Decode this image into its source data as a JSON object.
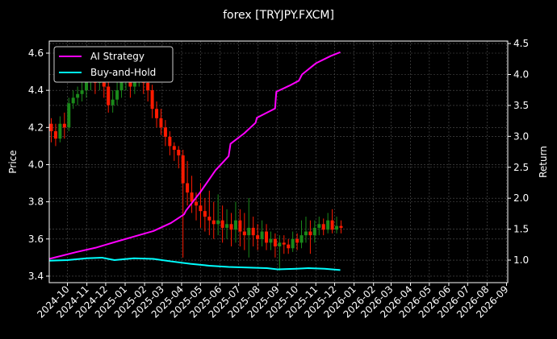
{
  "chart_data": {
    "type": "candlestick+line",
    "title": "forex [TRYJPY.FXCM]",
    "left_axis": {
      "label": "Price",
      "ylim": [
        3.365,
        4.665
      ],
      "ticks": [
        "3.4",
        "3.6",
        "3.8",
        "4.0",
        "4.2",
        "4.4",
        "4.6"
      ]
    },
    "right_axis": {
      "label": "Return",
      "ylim": [
        0.636,
        4.54
      ],
      "ticks": [
        "1.0",
        "1.5",
        "2.0",
        "2.5",
        "3.0",
        "3.5",
        "4.0",
        "4.5"
      ]
    },
    "x_axis": {
      "xlim": [
        "2024-09-02",
        "2026-09-03"
      ],
      "ticks": [
        "2024-10",
        "2024-11",
        "2024-12",
        "2025-01",
        "2025-02",
        "2025-03",
        "2025-04",
        "2025-05",
        "2025-06",
        "2025-07",
        "2025-08",
        "2025-09",
        "2025-10",
        "2025-11",
        "2025-12",
        "2026-01",
        "2026-02",
        "2026-03",
        "2026-04",
        "2026-05",
        "2026-06",
        "2026-07",
        "2026-08",
        "2026-09"
      ]
    },
    "grid": true,
    "legend": {
      "placement": "top-left",
      "entries": [
        "AI Strategy",
        "Buy-and-Hold"
      ]
    },
    "colors": {
      "up": "#1a8a1a",
      "down": "#ff1a00",
      "ai": "#ff00ff",
      "bh": "#00ffff",
      "background": "#000000"
    },
    "candles": {
      "dates": [
        "2024-09-02",
        "2024-09-09",
        "2024-09-16",
        "2024-09-23",
        "2024-09-30",
        "2024-10-07",
        "2024-10-14",
        "2024-10-21",
        "2024-10-28",
        "2024-11-04",
        "2024-11-11",
        "2024-11-18",
        "2024-11-25",
        "2024-12-02",
        "2024-12-09",
        "2024-12-16",
        "2024-12-23",
        "2024-12-30",
        "2025-01-06",
        "2025-01-13",
        "2025-01-20",
        "2025-01-27",
        "2025-02-03",
        "2025-02-10",
        "2025-02-17",
        "2025-02-24",
        "2025-03-03",
        "2025-03-10",
        "2025-03-17",
        "2025-03-24",
        "2025-03-31",
        "2025-04-07",
        "2025-04-14",
        "2025-04-21",
        "2025-04-28",
        "2025-05-05",
        "2025-05-12",
        "2025-05-19",
        "2025-05-26",
        "2025-06-02",
        "2025-06-09",
        "2025-06-16",
        "2025-06-23",
        "2025-06-30",
        "2025-07-07",
        "2025-07-14",
        "2025-07-21",
        "2025-07-28",
        "2025-08-04",
        "2025-08-11",
        "2025-08-18",
        "2025-08-25",
        "2025-09-01",
        "2025-09-08",
        "2025-09-15",
        "2025-09-22",
        "2025-09-29",
        "2025-10-06",
        "2025-10-13",
        "2025-10-20",
        "2025-10-27",
        "2025-11-03",
        "2025-11-10",
        "2025-11-17",
        "2025-11-24",
        "2025-12-01",
        "2025-12-08"
      ],
      "ohlc": [
        [
          4.22,
          4.25,
          4.12,
          4.18
        ],
        [
          4.18,
          4.22,
          4.1,
          4.14
        ],
        [
          4.14,
          4.26,
          4.12,
          4.22
        ],
        [
          4.22,
          4.28,
          4.14,
          4.2
        ],
        [
          4.2,
          4.36,
          4.18,
          4.33
        ],
        [
          4.33,
          4.4,
          4.3,
          4.36
        ],
        [
          4.36,
          4.42,
          4.32,
          4.38
        ],
        [
          4.38,
          4.48,
          4.34,
          4.4
        ],
        [
          4.4,
          4.52,
          4.36,
          4.45
        ],
        [
          4.45,
          4.53,
          4.4,
          4.48
        ],
        [
          4.48,
          4.52,
          4.38,
          4.44
        ],
        [
          4.44,
          4.55,
          4.4,
          4.5
        ],
        [
          4.5,
          4.53,
          4.36,
          4.42
        ],
        [
          4.42,
          4.45,
          4.28,
          4.32
        ],
        [
          4.32,
          4.4,
          4.28,
          4.35
        ],
        [
          4.35,
          4.46,
          4.32,
          4.4
        ],
        [
          4.4,
          4.52,
          4.36,
          4.45
        ],
        [
          4.45,
          4.54,
          4.4,
          4.48
        ],
        [
          4.48,
          4.52,
          4.36,
          4.42
        ],
        [
          4.42,
          4.52,
          4.38,
          4.46
        ],
        [
          4.46,
          4.55,
          4.42,
          4.5
        ],
        [
          4.5,
          4.53,
          4.38,
          4.44
        ],
        [
          4.44,
          4.47,
          4.34,
          4.4
        ],
        [
          4.4,
          4.43,
          4.25,
          4.3
        ],
        [
          4.3,
          4.34,
          4.2,
          4.25
        ],
        [
          4.25,
          4.3,
          4.16,
          4.2
        ],
        [
          4.2,
          4.24,
          4.1,
          4.15
        ],
        [
          4.15,
          4.18,
          4.05,
          4.1
        ],
        [
          4.1,
          4.12,
          4.02,
          4.08
        ],
        [
          4.08,
          4.1,
          3.98,
          4.05
        ],
        [
          4.05,
          4.08,
          3.5,
          3.9
        ],
        [
          3.9,
          4.02,
          3.78,
          3.85
        ],
        [
          3.85,
          3.94,
          3.74,
          3.8
        ],
        [
          3.8,
          3.85,
          3.7,
          3.78
        ],
        [
          3.78,
          3.9,
          3.66,
          3.75
        ],
        [
          3.75,
          3.82,
          3.64,
          3.72
        ],
        [
          3.72,
          3.86,
          3.62,
          3.7
        ],
        [
          3.7,
          3.8,
          3.6,
          3.68
        ],
        [
          3.68,
          3.84,
          3.62,
          3.7
        ],
        [
          3.7,
          3.78,
          3.58,
          3.66
        ],
        [
          3.66,
          3.76,
          3.6,
          3.68
        ],
        [
          3.68,
          3.74,
          3.56,
          3.65
        ],
        [
          3.65,
          3.8,
          3.58,
          3.7
        ],
        [
          3.7,
          3.76,
          3.56,
          3.64
        ],
        [
          3.64,
          3.74,
          3.54,
          3.62
        ],
        [
          3.62,
          3.82,
          3.5,
          3.66
        ],
        [
          3.66,
          3.72,
          3.56,
          3.62
        ],
        [
          3.62,
          3.68,
          3.54,
          3.6
        ],
        [
          3.6,
          3.7,
          3.56,
          3.64
        ],
        [
          3.64,
          3.68,
          3.54,
          3.58
        ],
        [
          3.58,
          3.64,
          3.54,
          3.6
        ],
        [
          3.6,
          3.63,
          3.5,
          3.56
        ],
        [
          3.56,
          3.62,
          3.43,
          3.58
        ],
        [
          3.58,
          3.62,
          3.52,
          3.57
        ],
        [
          3.57,
          3.6,
          3.52,
          3.55
        ],
        [
          3.55,
          3.64,
          3.53,
          3.6
        ],
        [
          3.6,
          3.63,
          3.54,
          3.58
        ],
        [
          3.58,
          3.7,
          3.55,
          3.62
        ],
        [
          3.62,
          3.72,
          3.58,
          3.64
        ],
        [
          3.64,
          3.7,
          3.52,
          3.62
        ],
        [
          3.62,
          3.7,
          3.58,
          3.66
        ],
        [
          3.66,
          3.72,
          3.62,
          3.68
        ],
        [
          3.68,
          3.71,
          3.62,
          3.65
        ],
        [
          3.65,
          3.74,
          3.63,
          3.7
        ],
        [
          3.7,
          3.76,
          3.63,
          3.65
        ],
        [
          3.65,
          3.72,
          3.63,
          3.67
        ],
        [
          3.67,
          3.7,
          3.63,
          3.66
        ]
      ]
    },
    "series": [
      {
        "name": "AI Strategy",
        "axis": "right",
        "x": [
          "2024-09-02",
          "2024-10-15",
          "2024-11-15",
          "2024-12-15",
          "2025-01-15",
          "2025-02-15",
          "2025-03-15",
          "2025-04-05",
          "2025-04-08",
          "2025-05-01",
          "2025-05-25",
          "2025-06-15",
          "2025-06-18",
          "2025-07-10",
          "2025-07-28",
          "2025-07-30",
          "2025-08-28",
          "2025-08-30",
          "2025-09-20",
          "2025-10-05",
          "2025-10-10",
          "2025-11-01",
          "2025-11-25",
          "2025-12-10"
        ],
        "y": [
          1.02,
          1.13,
          1.2,
          1.29,
          1.38,
          1.47,
          1.6,
          1.74,
          1.8,
          2.1,
          2.45,
          2.68,
          2.88,
          3.05,
          3.22,
          3.3,
          3.45,
          3.72,
          3.82,
          3.9,
          4.0,
          4.18,
          4.3,
          4.36
        ]
      },
      {
        "name": "Buy-and-Hold",
        "axis": "right",
        "x": [
          "2024-09-02",
          "2024-10-01",
          "2024-11-01",
          "2024-11-25",
          "2024-12-15",
          "2025-01-15",
          "2025-02-15",
          "2025-03-15",
          "2025-04-15",
          "2025-05-15",
          "2025-06-15",
          "2025-07-15",
          "2025-08-15",
          "2025-09-01",
          "2025-10-01",
          "2025-10-20",
          "2025-11-15",
          "2025-12-10"
        ],
        "y": [
          0.99,
          1.0,
          1.03,
          1.04,
          1.0,
          1.03,
          1.02,
          0.98,
          0.94,
          0.91,
          0.89,
          0.88,
          0.87,
          0.85,
          0.86,
          0.87,
          0.86,
          0.84
        ]
      }
    ]
  }
}
